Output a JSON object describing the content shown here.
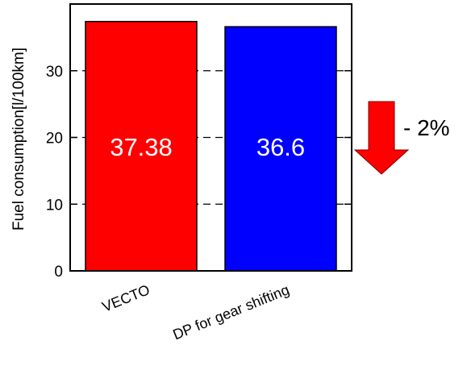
{
  "chart_data": {
    "type": "bar",
    "categories": [
      "VECTO",
      "DP for gear shifting"
    ],
    "values": [
      37.38,
      36.6
    ],
    "data_labels": [
      "37.38",
      "36.6"
    ],
    "bar_colors": [
      "#ff0000",
      "#0000ff"
    ],
    "title": "",
    "xlabel": "",
    "ylabel": "Fuel consumption[l/100km]",
    "ylim": [
      0,
      40
    ],
    "yticks": [
      0,
      10,
      20,
      30
    ],
    "ytick_labels": [
      "0",
      "10",
      "20",
      "30"
    ],
    "grid": "dashed horizontal at y ticks",
    "annotation": {
      "text": "- 2%",
      "arrow_color": "#ff0000",
      "direction": "down"
    }
  }
}
